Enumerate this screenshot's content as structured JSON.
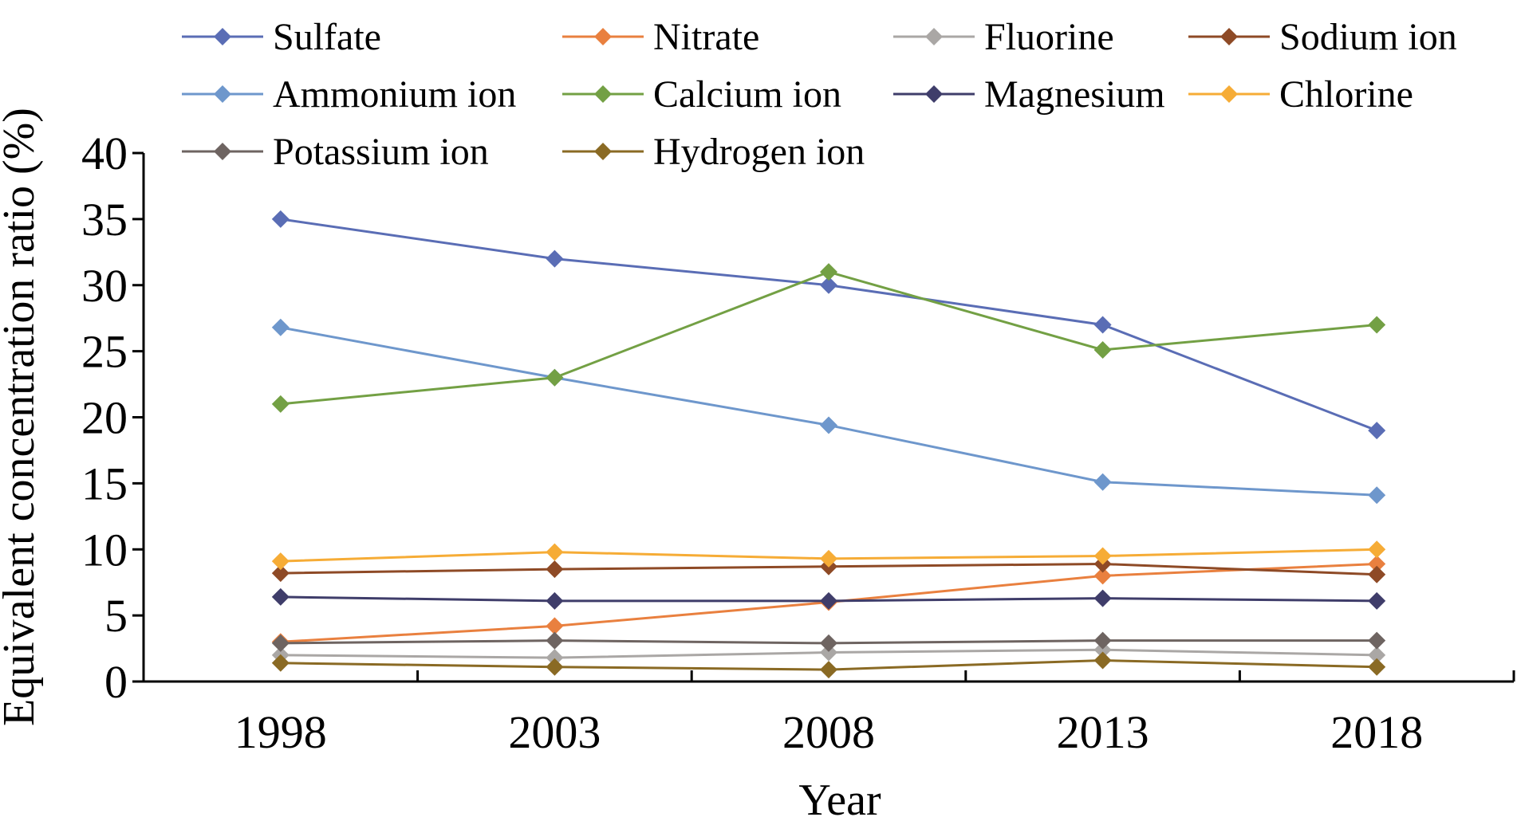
{
  "chart_data": {
    "type": "line",
    "title": "",
    "xlabel": "Year",
    "ylabel": "Equivalent concentration ratio (%)",
    "ylim": [
      0,
      40
    ],
    "yticks": [
      "0",
      "5",
      "10",
      "15",
      "20",
      "25",
      "30",
      "35",
      "40"
    ],
    "categories": [
      "1998",
      "2003",
      "2008",
      "2013",
      "2018"
    ],
    "grid": false,
    "legend_position": "top",
    "series": [
      {
        "name": "Sulfate",
        "color": "#5A6DB5",
        "values": [
          35.0,
          32.0,
          30.0,
          27.0,
          19.0
        ]
      },
      {
        "name": "Nitrate",
        "color": "#E9803F",
        "values": [
          3.0,
          4.2,
          6.0,
          8.0,
          8.9
        ]
      },
      {
        "name": "Fluorine",
        "color": "#AAA7A5",
        "values": [
          2.0,
          1.8,
          2.2,
          2.4,
          2.0
        ]
      },
      {
        "name": "Sodium ion",
        "color": "#8E4A26",
        "values": [
          8.2,
          8.5,
          8.7,
          8.9,
          8.1
        ]
      },
      {
        "name": "Ammonium ion",
        "color": "#6E97CC",
        "values": [
          26.8,
          23.0,
          19.4,
          15.1,
          14.1
        ]
      },
      {
        "name": "Calcium ion",
        "color": "#73A044",
        "values": [
          21.0,
          23.0,
          31.0,
          25.1,
          27.0
        ]
      },
      {
        "name": "Magnesium",
        "color": "#3F3D6A",
        "values": [
          6.4,
          6.1,
          6.1,
          6.3,
          6.1
        ]
      },
      {
        "name": "Chlorine",
        "color": "#F6AC36",
        "values": [
          9.1,
          9.8,
          9.3,
          9.5,
          10.0
        ]
      },
      {
        "name": "Potassium ion",
        "color": "#6E6461",
        "values": [
          2.9,
          3.1,
          2.9,
          3.1,
          3.1
        ]
      },
      {
        "name": "Hydrogen ion",
        "color": "#8A6A24",
        "values": [
          1.4,
          1.1,
          0.9,
          1.6,
          1.1
        ]
      }
    ]
  }
}
